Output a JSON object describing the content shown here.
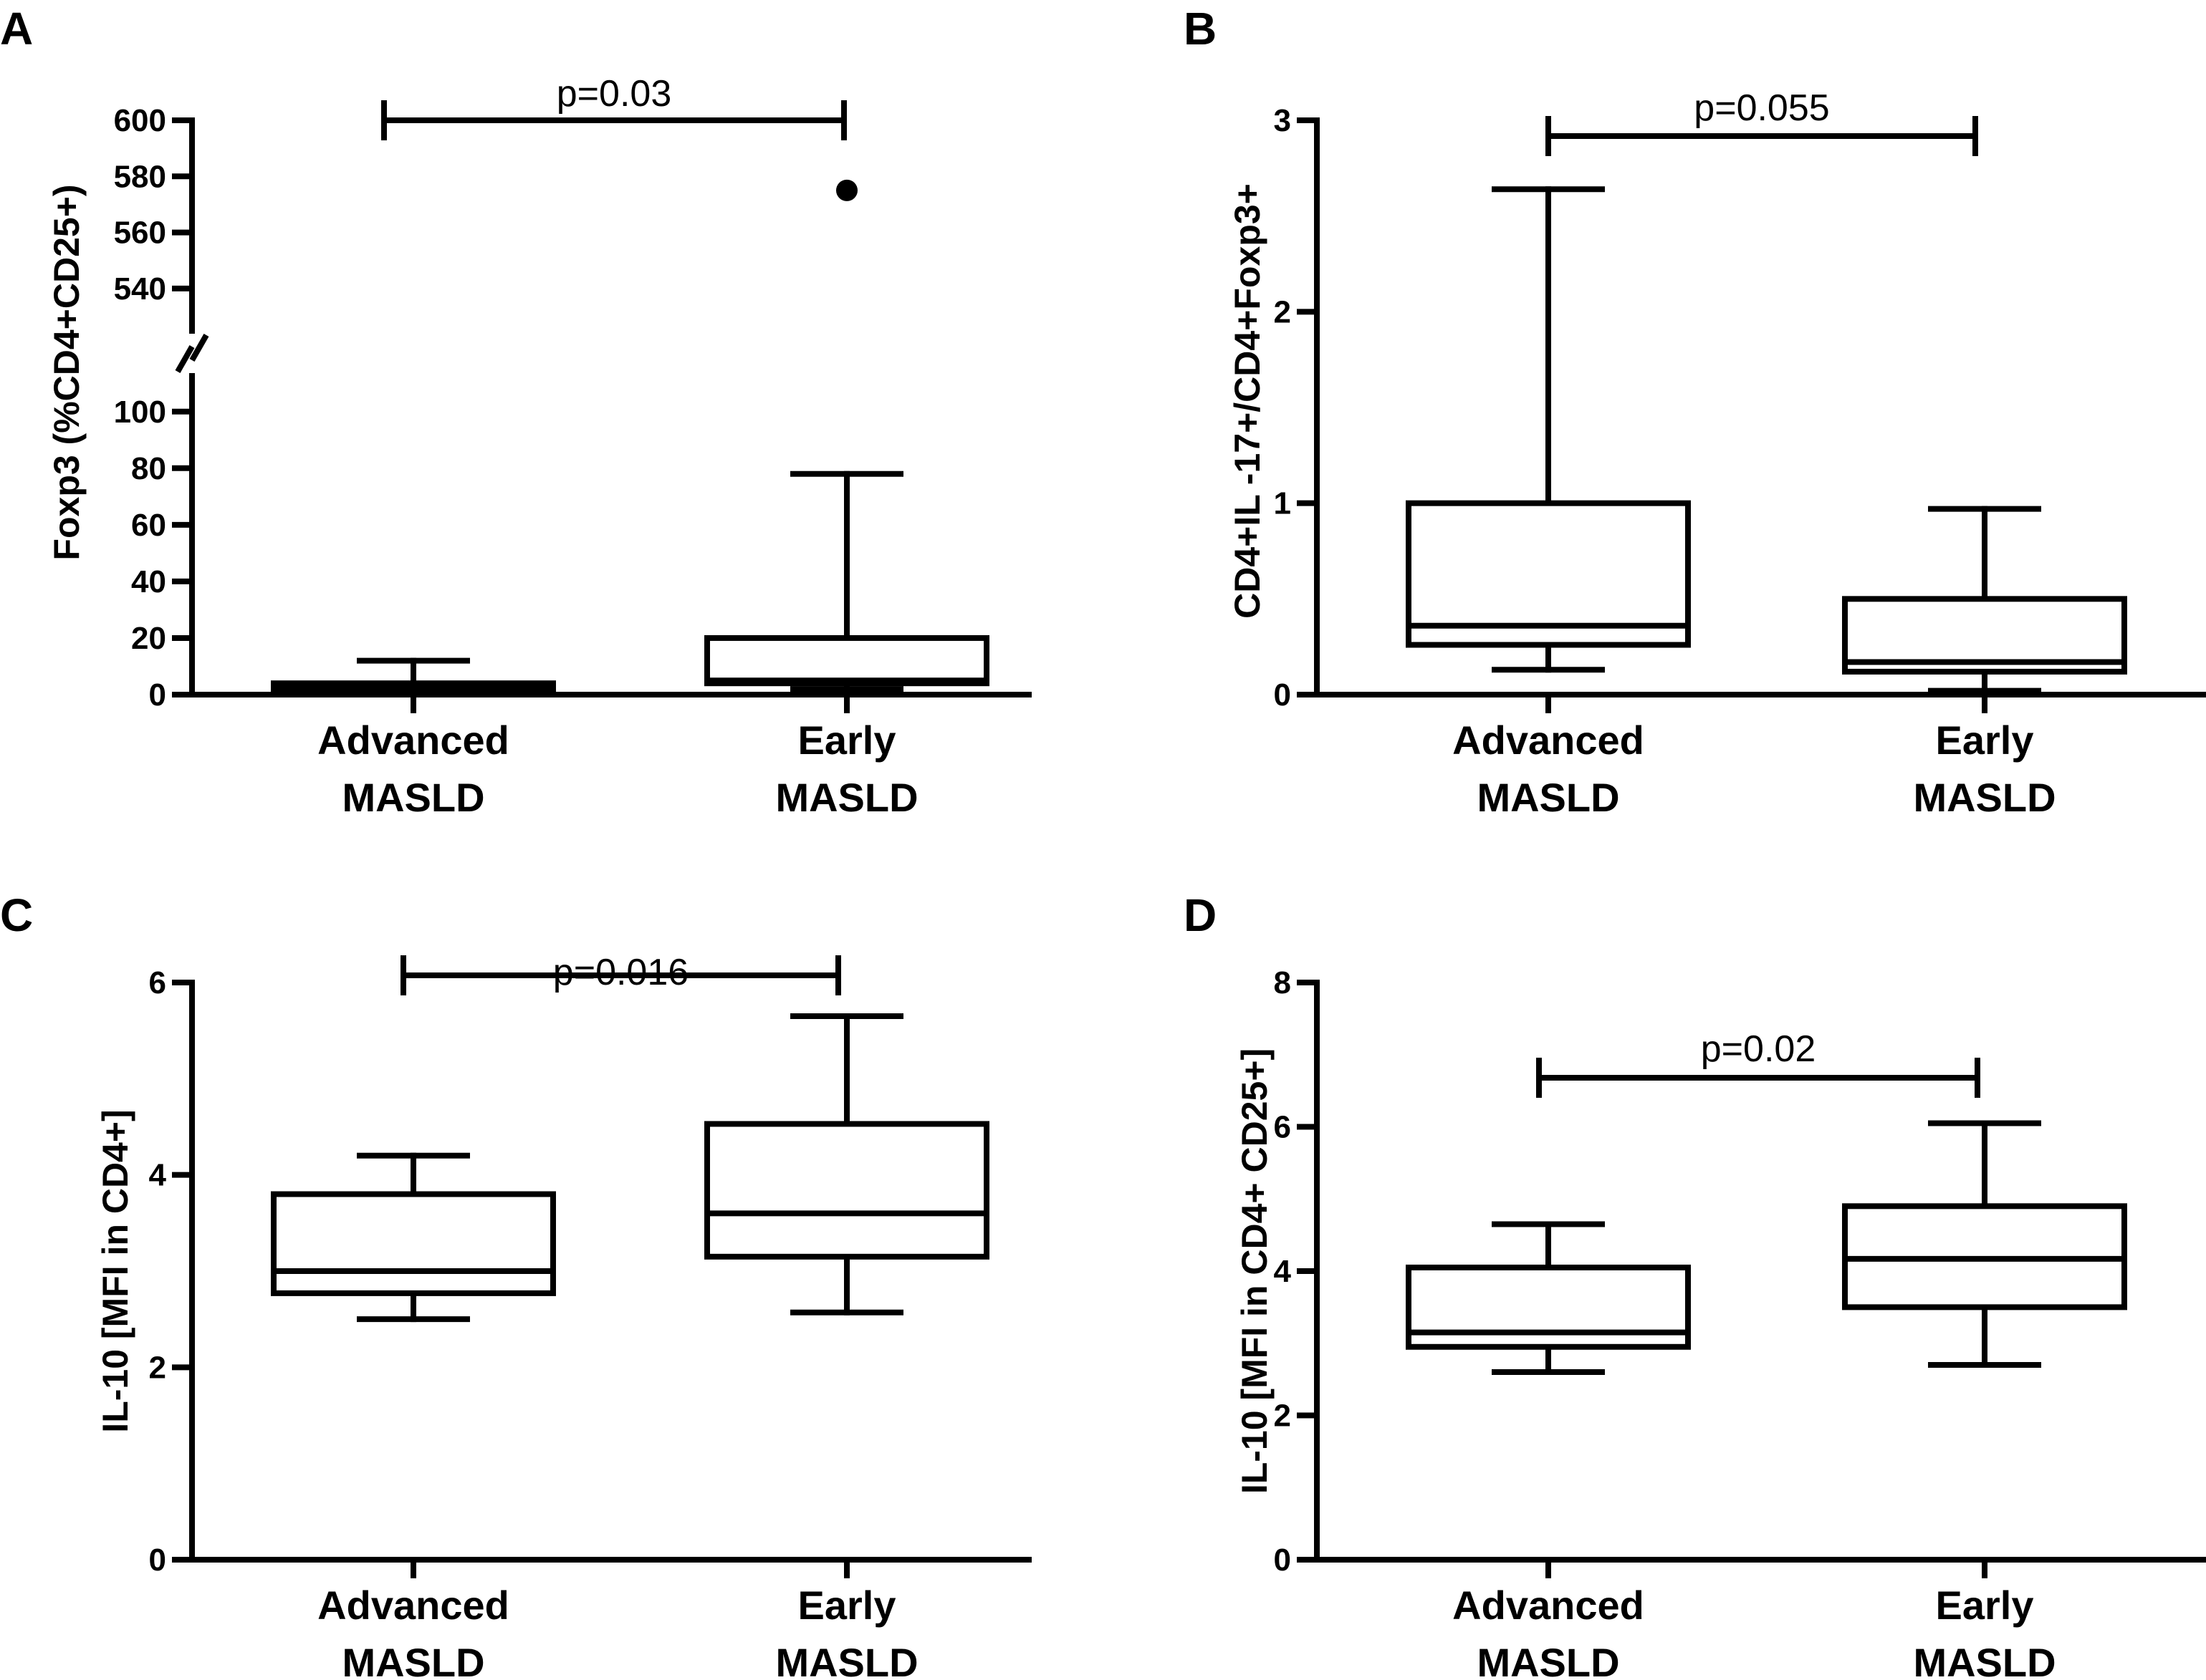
{
  "chart_data": [
    {
      "panel": "A",
      "type": "box",
      "ylabel": "Foxp3 (%CD4+CD25+)",
      "categories": [
        [
          "Advanced",
          "MASLD"
        ],
        [
          "Early",
          "MASLD"
        ]
      ],
      "boxes": [
        {
          "min": 1,
          "q1": 2,
          "median": 3,
          "q3": 4,
          "max": 12
        },
        {
          "min": 2,
          "q1": 4,
          "median": 5,
          "q3": 20,
          "max": 78
        }
      ],
      "outliers": [
        {
          "group": 1,
          "value": 575
        }
      ],
      "axis_break": true,
      "y_ticks_lower": [
        0,
        20,
        40,
        60,
        80,
        100
      ],
      "y_ticks_upper": [
        540,
        560,
        580,
        600
      ],
      "lower_range": [
        0,
        105
      ],
      "upper_range": [
        530,
        600
      ],
      "p_value": "p=0.03",
      "p_bar_level": 600
    },
    {
      "panel": "B",
      "type": "box",
      "ylabel": "CD4+IL -17+/CD4+Foxp3+",
      "categories": [
        [
          "Advanced",
          "MASLD"
        ],
        [
          "Early",
          "MASLD"
        ]
      ],
      "boxes": [
        {
          "min": 0.13,
          "q1": 0.26,
          "median": 0.36,
          "q3": 1.0,
          "max": 2.64
        },
        {
          "min": 0.02,
          "q1": 0.12,
          "median": 0.17,
          "q3": 0.5,
          "max": 0.97
        }
      ],
      "ylim": [
        0,
        3
      ],
      "y_ticks": [
        0,
        1,
        2,
        3
      ],
      "p_value": "p=0.055",
      "p_bar_level": 2.9
    },
    {
      "panel": "C",
      "type": "box",
      "ylabel": "IL-10 [MFI in CD4+]",
      "categories": [
        [
          "Advanced",
          "MASLD"
        ],
        [
          "Early",
          "MASLD"
        ]
      ],
      "boxes": [
        {
          "min": 2.5,
          "q1": 2.77,
          "median": 3.0,
          "q3": 3.8,
          "max": 4.2
        },
        {
          "min": 2.57,
          "q1": 3.15,
          "median": 3.6,
          "q3": 4.53,
          "max": 5.65
        }
      ],
      "ylim": [
        0,
        6
      ],
      "y_ticks": [
        0,
        2,
        4,
        6
      ],
      "p_value": "p=0.016",
      "p_bar_level": 6.2
    },
    {
      "panel": "D",
      "type": "box",
      "ylabel": "IL-10 [MFI in CD4+ CD25+]",
      "categories": [
        [
          "Advanced",
          "MASLD"
        ],
        [
          "Early",
          "MASLD"
        ]
      ],
      "boxes": [
        {
          "min": 2.6,
          "q1": 2.95,
          "median": 3.15,
          "q3": 4.05,
          "max": 4.65
        },
        {
          "min": 2.7,
          "q1": 3.5,
          "median": 4.17,
          "q3": 4.9,
          "max": 6.05
        }
      ],
      "ylim": [
        0,
        8
      ],
      "y_ticks": [
        0,
        2,
        4,
        6,
        8
      ],
      "p_value": "p=0.02",
      "p_bar_level": 6.7
    }
  ]
}
